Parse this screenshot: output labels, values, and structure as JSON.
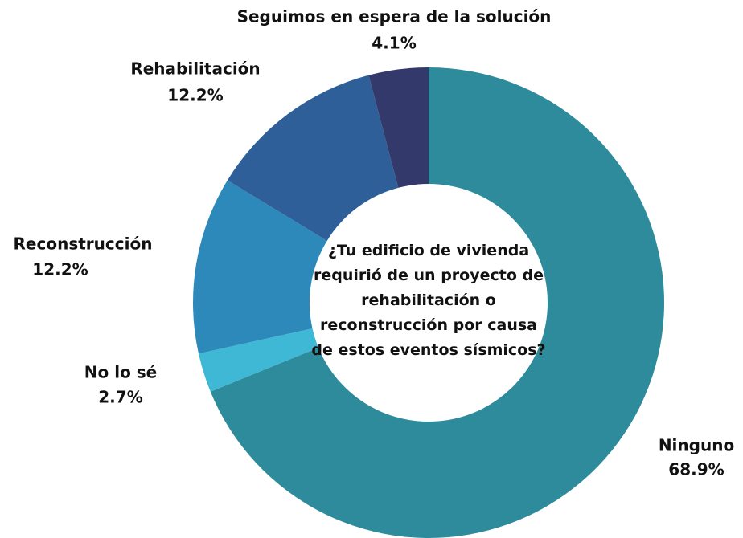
{
  "chart_data": {
    "type": "pie",
    "center_text": "¿Tu edificio de vivienda requirió de un proyecto de rehabilitación o reconstrucción por causa de estos eventos sísmicos?",
    "categories": [
      "Ninguno",
      "No lo sé",
      "Reconstrucción",
      "Rehabilitación",
      "Seguimos en espera de la solución"
    ],
    "values": [
      68.9,
      2.7,
      12.2,
      12.2,
      4.1
    ],
    "value_labels": [
      "68.9%",
      "2.7%",
      "12.2%",
      "12.2%",
      "4.1%"
    ],
    "colors": [
      "#2e8b9b",
      "#3fb8d6",
      "#2e89bb",
      "#2e5f98",
      "#33396b"
    ]
  }
}
